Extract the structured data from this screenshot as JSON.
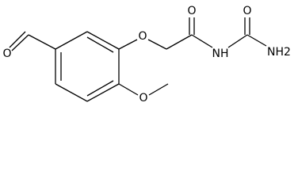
{
  "atoms": [
    {
      "label": "O"
    },
    {
      "label": "O"
    },
    {
      "label": "O"
    },
    {
      "label": "NH"
    },
    {
      "label": "O"
    },
    {
      "label": "NH2"
    },
    {
      "label": "O"
    }
  ]
}
